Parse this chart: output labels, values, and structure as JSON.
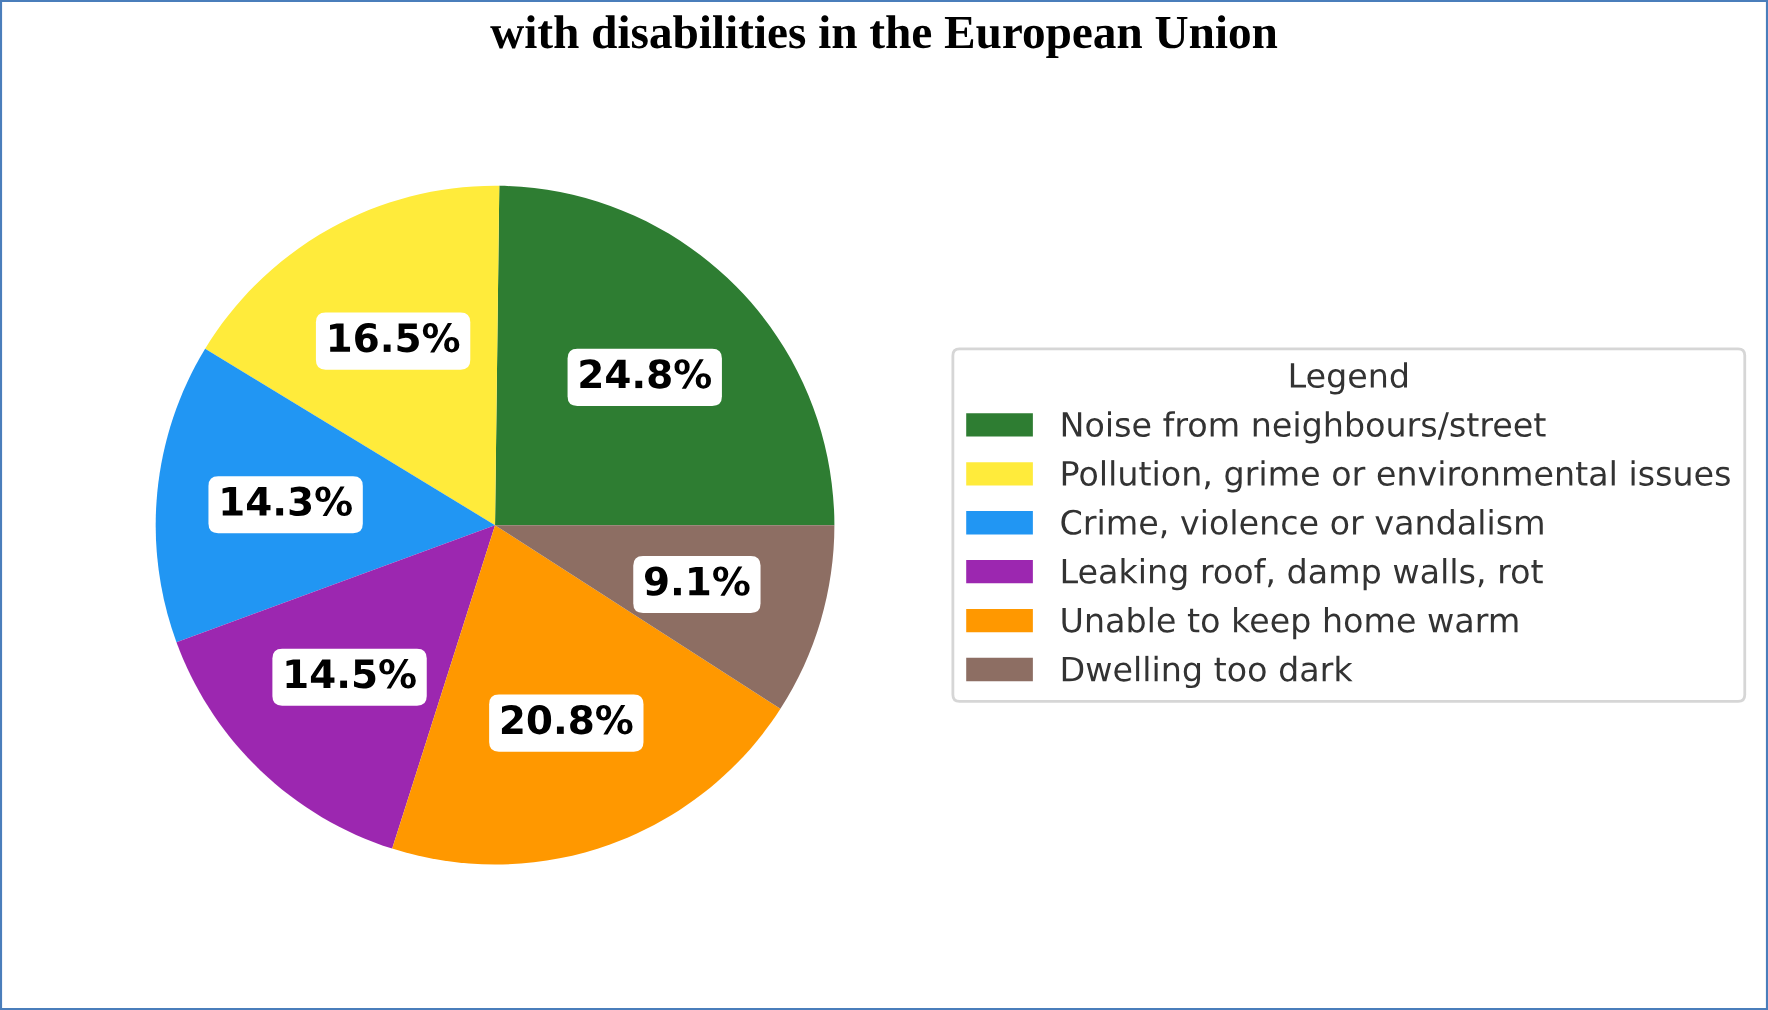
{
  "chart_data": {
    "type": "pie",
    "title": "with disabilities in the European Union",
    "categories": [
      "Noise from neighbours/street",
      "Pollution, grime or environmental issues",
      "Crime, violence or vandalism",
      "Leaking roof, damp walls, rot",
      "Unable to keep home warm",
      "Dwelling too dark"
    ],
    "values": [
      24.8,
      16.5,
      14.3,
      14.5,
      20.8,
      9.1
    ],
    "colors": [
      "#2e7d32",
      "#ffeb3b",
      "#2196f3",
      "#9c27b0",
      "#ff9800",
      "#8d6e63"
    ],
    "value_labels": [
      "24.8%",
      "16.5%",
      "14.3%",
      "14.5%",
      "20.8%",
      "9.1%"
    ],
    "legend_title": "Legend",
    "legend": "right"
  }
}
